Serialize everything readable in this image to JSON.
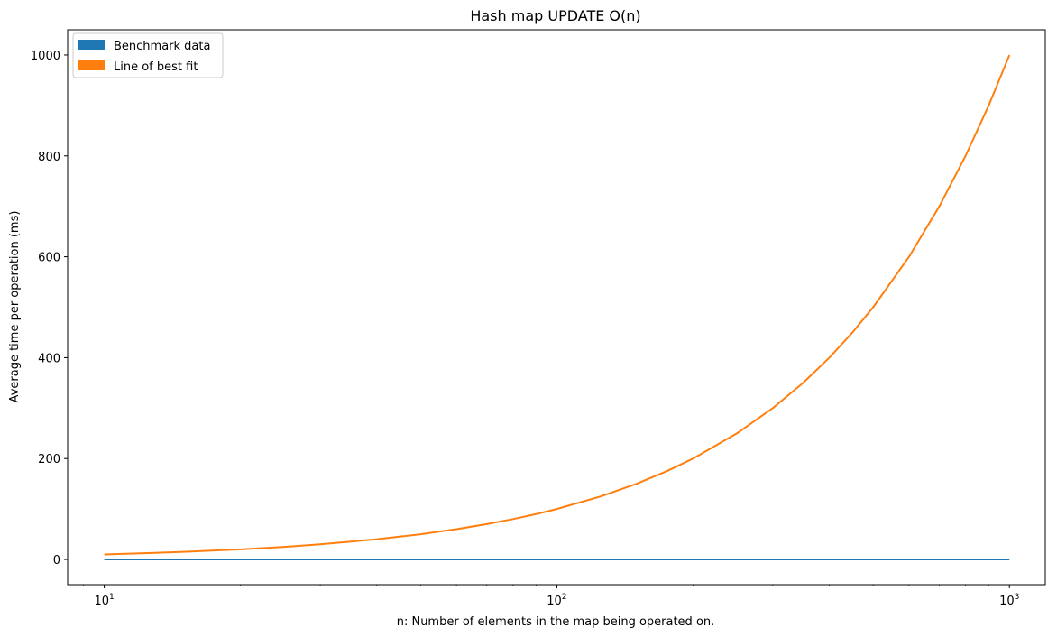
{
  "chart_data": {
    "type": "line",
    "title": "Hash map UPDATE O(n)",
    "xlabel": "n: Number of elements in the map being operated on.",
    "ylabel": "Average time per operation (ms)",
    "xscale": "log",
    "xlim": [
      8.3,
      1200
    ],
    "ylim": [
      -50,
      1050
    ],
    "grid": false,
    "legend_position": "top-left",
    "x_ticks": [
      {
        "value": 10,
        "base": "10",
        "exp": "1"
      },
      {
        "value": 100,
        "base": "10",
        "exp": "2"
      },
      {
        "value": 1000,
        "base": "10",
        "exp": "3"
      }
    ],
    "y_ticks": [
      {
        "value": 0,
        "label": "0"
      },
      {
        "value": 200,
        "label": "200"
      },
      {
        "value": 400,
        "label": "400"
      },
      {
        "value": 600,
        "label": "600"
      },
      {
        "value": 800,
        "label": "800"
      },
      {
        "value": 1000,
        "label": "1000"
      }
    ],
    "series": [
      {
        "name": "Benchmark data",
        "color": "#1f77b4",
        "x": [
          10,
          20,
          50,
          100,
          200,
          500,
          1000
        ],
        "y": [
          0.05,
          0.05,
          0.05,
          0.05,
          0.05,
          0.05,
          0.05
        ]
      },
      {
        "name": "Line of best fit",
        "color": "#ff7f0e",
        "x": [
          10,
          12.5,
          15,
          20,
          25,
          30,
          40,
          50,
          60,
          70,
          80,
          90,
          100,
          125,
          150,
          175,
          200,
          250,
          300,
          350,
          400,
          450,
          500,
          600,
          700,
          800,
          900,
          1000
        ],
        "y": [
          10,
          12.5,
          15,
          20,
          25,
          30,
          40,
          50,
          60,
          70,
          80,
          90,
          100,
          125,
          150,
          175,
          200,
          250,
          300,
          350,
          400,
          450,
          500,
          600,
          700,
          800,
          900,
          1000
        ]
      }
    ]
  }
}
